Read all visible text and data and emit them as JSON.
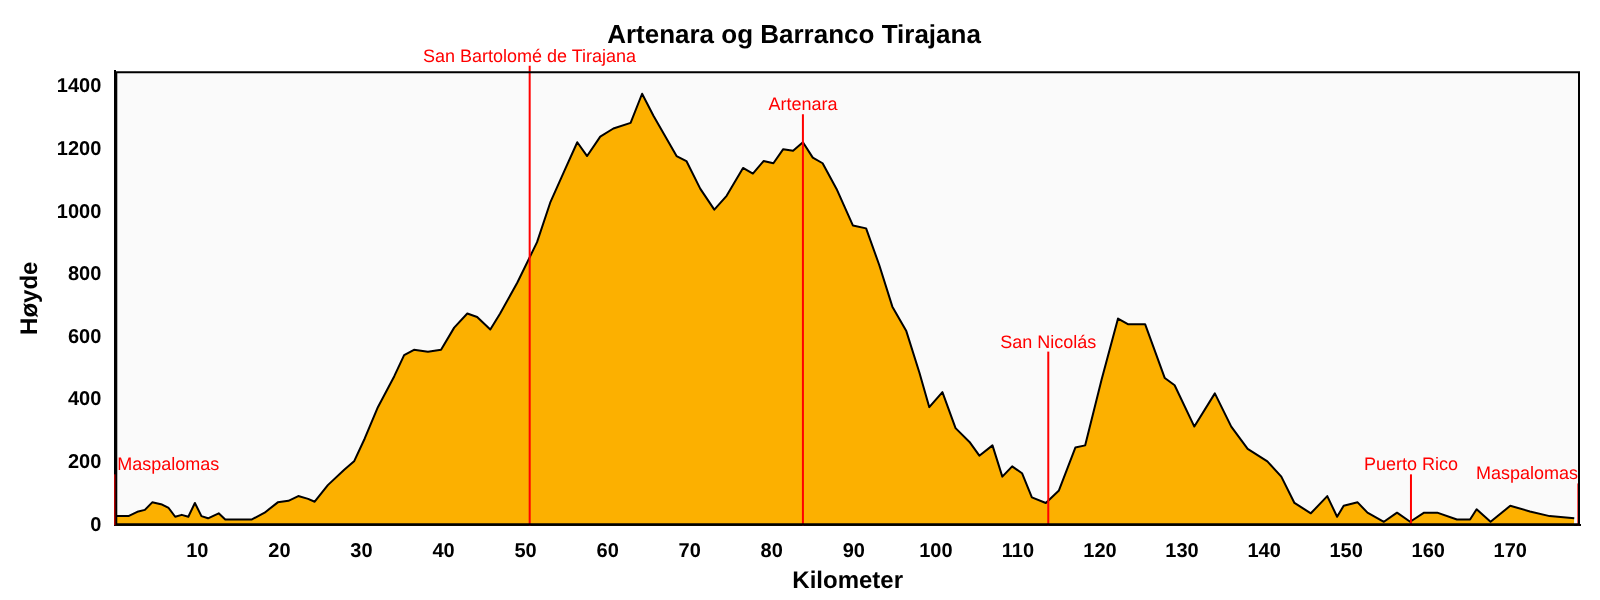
{
  "chart_data": {
    "type": "area",
    "title": "Artenara og Barranco Tirajana",
    "xlabel": "Kilometer",
    "ylabel": "Høyde",
    "xlim": [
      0,
      178.5
    ],
    "ylim": [
      0,
      1450
    ],
    "xticks": [
      10,
      20,
      30,
      40,
      50,
      60,
      70,
      80,
      90,
      100,
      110,
      120,
      130,
      140,
      150,
      160,
      170
    ],
    "yticks": [
      0,
      200,
      400,
      600,
      800,
      1000,
      1200,
      1400
    ],
    "grid": false,
    "legend": false,
    "marker": "none",
    "series": [
      {
        "color": "#fcb000",
        "x": [
          0,
          1.6,
          2.8,
          3.6,
          4.5,
          5.7,
          6.5,
          7.3,
          8.1,
          8.9,
          9.7,
          10.5,
          11.3,
          12.6,
          13.4,
          14.6,
          16.6,
          18.2,
          19.8,
          21.1,
          22.3,
          23.5,
          24.3,
          25.9,
          27.9,
          29.1,
          30.4,
          32.0,
          34.0,
          35.2,
          36.4,
          38.1,
          39.7,
          41.3,
          42.9,
          44.1,
          45.7,
          46.9,
          49.0,
          51.4,
          53.0,
          54.7,
          56.3,
          57.5,
          59.1,
          60.7,
          62.8,
          64.2,
          65.6,
          68.4,
          69.6,
          71.3,
          73.0,
          74.5,
          76.5,
          77.7,
          79.0,
          80.2,
          81.4,
          82.6,
          83.8,
          85.0,
          86.2,
          87.9,
          89.9,
          91.5,
          93.1,
          94.7,
          96.4,
          98.0,
          99.2,
          100.8,
          102.4,
          104.1,
          105.3,
          106.9,
          108.1,
          109.3,
          110.5,
          111.7,
          113.4,
          115.0,
          117.0,
          118.2,
          120.2,
          122.2,
          123.4,
          125.5,
          127.9,
          129.1,
          131.5,
          134.0,
          136.0,
          138.0,
          140.4,
          142.1,
          143.7,
          145.7,
          147.7,
          148.9,
          149.7,
          151.4,
          152.6,
          154.6,
          156.2,
          157.8,
          159.5,
          161.1,
          163.5,
          165.1,
          165.9,
          167.6,
          170.0,
          172.4,
          174.8,
          177.8
        ],
        "values": [
          29,
          29,
          44,
          49,
          73,
          66,
          55,
          27,
          33,
          27,
          71,
          29,
          22,
          38,
          18,
          18,
          18,
          40,
          73,
          78,
          93,
          84,
          75,
          128,
          177,
          204,
          277,
          377,
          476,
          543,
          560,
          554,
          560,
          631,
          676,
          665,
          625,
          676,
          775,
          904,
          1030,
          1130,
          1223,
          1179,
          1241,
          1267,
          1285,
          1378,
          1307,
          1179,
          1163,
          1074,
          1008,
          1052,
          1141,
          1123,
          1163,
          1156,
          1201,
          1196,
          1223,
          1174,
          1156,
          1074,
          957,
          948,
          831,
          698,
          620,
          487,
          377,
          425,
          310,
          266,
          222,
          255,
          155,
          188,
          166,
          89,
          71,
          111,
          248,
          255,
          465,
          660,
          642,
          642,
          470,
          447,
          315,
          421,
          315,
          244,
          204,
          155,
          71,
          38,
          93,
          27,
          62,
          73,
          40,
          11,
          40,
          11,
          40,
          40,
          18,
          18,
          51,
          11,
          62,
          44,
          29,
          22
        ]
      }
    ],
    "ref_lines": [
      {
        "axis": "x",
        "value": 0,
        "label": "Maspalomas",
        "color": "#ff0000"
      },
      {
        "axis": "x",
        "value": 50.5,
        "label": "San Bartolomé de Tirajana",
        "color": "#ff0000"
      },
      {
        "axis": "x",
        "value": 83.8,
        "label": "Artenara",
        "color": "#ff0000"
      },
      {
        "axis": "x",
        "value": 113.7,
        "label": "San Nicolás",
        "color": "#ff0000"
      },
      {
        "axis": "x",
        "value": 157.9,
        "label": "Puerto Rico",
        "color": "#ff0000"
      },
      {
        "axis": "x",
        "value": 178.3,
        "label": "Maspalomas",
        "color": "#ff0000"
      }
    ]
  }
}
